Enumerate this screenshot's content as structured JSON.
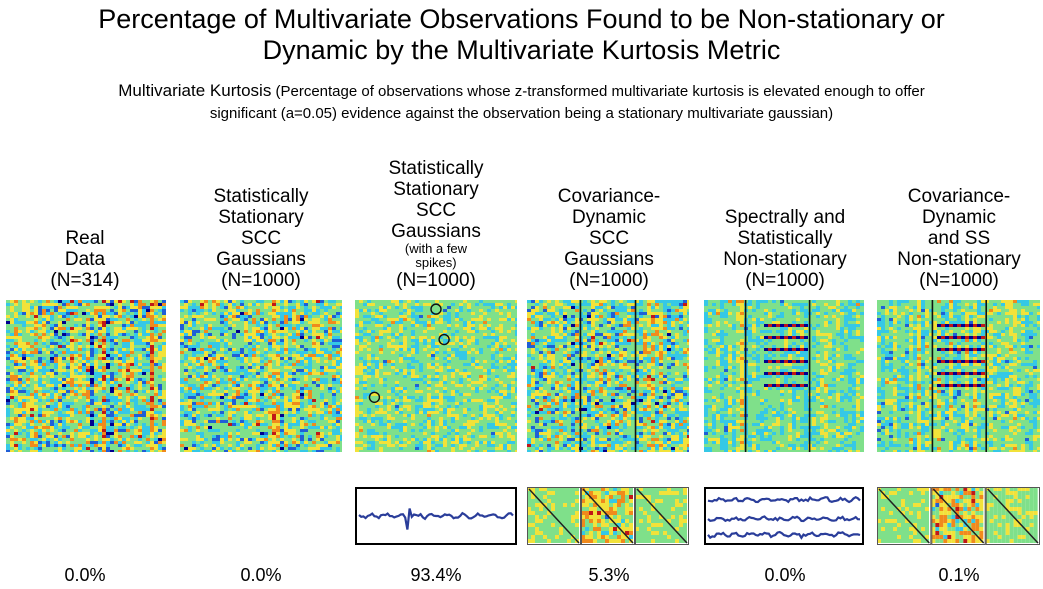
{
  "header": {
    "title_line1": "Percentage of Multivariate Observations Found to be Non-stationary or",
    "title_line2": "Dynamic by the Multivariate Kurtosis Metric",
    "subtitle_lead": "Multivariate Kurtosis",
    "subtitle_rest": " (Percentage of observations whose z-transformed multivariate kurtosis is elevated enough to offer",
    "subtitle_line2": "significant (a=0.05) evidence against the observation being a stationary multivariate gaussian)"
  },
  "columns": [
    {
      "lines": [
        "Real",
        "Data",
        "(N=314)"
      ],
      "small": [],
      "tail": [],
      "percent": "0.0%",
      "strip": "none"
    },
    {
      "lines": [
        "Statistically",
        "Stationary",
        "SCC",
        "Gaussians",
        "(N=1000)"
      ],
      "small": [],
      "tail": [],
      "percent": "0.0%",
      "strip": "none"
    },
    {
      "lines": [
        "Statistically",
        "Stationary",
        "SCC",
        "Gaussians"
      ],
      "small": [
        "(with a few",
        "spikes)"
      ],
      "tail": [
        "(N=1000)"
      ],
      "percent": "93.4%",
      "strip": "signal"
    },
    {
      "lines": [
        "Covariance-",
        "Dynamic",
        "SCC",
        "Gaussians",
        "(N=1000)"
      ],
      "small": [],
      "tail": [],
      "percent": "5.3%",
      "strip": "matrix"
    },
    {
      "lines": [
        "Spectrally and",
        "Statistically",
        "Non-stationary",
        "(N=1000)"
      ],
      "small": [],
      "tail": [],
      "percent": "0.0%",
      "strip": "signals3"
    },
    {
      "lines": [
        "Covariance-",
        "Dynamic",
        "and SS",
        "Non-stationary",
        "(N=1000)"
      ],
      "small": [],
      "tail": [],
      "percent": "0.1%",
      "strip": "matrix"
    }
  ],
  "palette": {
    "blue_dark": "#00008f",
    "blue": "#1f5fd6",
    "cyan": "#35c8e6",
    "green": "#7fe08a",
    "yellow": "#f2e23a",
    "orange": "#f08a1c",
    "red": "#c01818",
    "line": "#2a3d9a"
  }
}
